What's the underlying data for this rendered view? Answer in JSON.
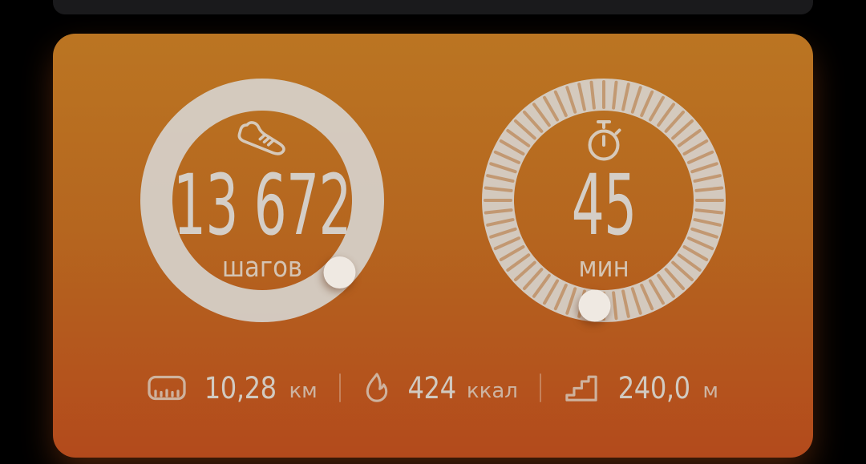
{
  "background_color": "#000000",
  "previous_card_color": "#1a1a1c",
  "activity_card": {
    "colors": {
      "gradient_top": "#bb7522",
      "gradient_mid": "#b5661f",
      "gradient_bottom": "#b34a1c",
      "ring_color": "#d5cfc7",
      "cap_color": "#efe9e2",
      "text_color": "#d4cec7"
    },
    "rings": [
      {
        "id": "steps",
        "icon": "shoe-icon",
        "value": "13 672",
        "label": "шагов",
        "progress_deg": 133,
        "style": "solid"
      },
      {
        "id": "duration",
        "icon": "stopwatch-icon",
        "value": "45",
        "label": "мин",
        "progress_deg": 185,
        "style": "ticks",
        "tick_count": 60
      }
    ],
    "stats": [
      {
        "id": "distance",
        "icon": "ruler-icon",
        "value": "10,28",
        "unit": "км"
      },
      {
        "id": "calories",
        "icon": "flame-icon",
        "value": "424",
        "unit": "ккал"
      },
      {
        "id": "climb",
        "icon": "stairs-icon",
        "value": "240,0",
        "unit": "м"
      }
    ]
  }
}
